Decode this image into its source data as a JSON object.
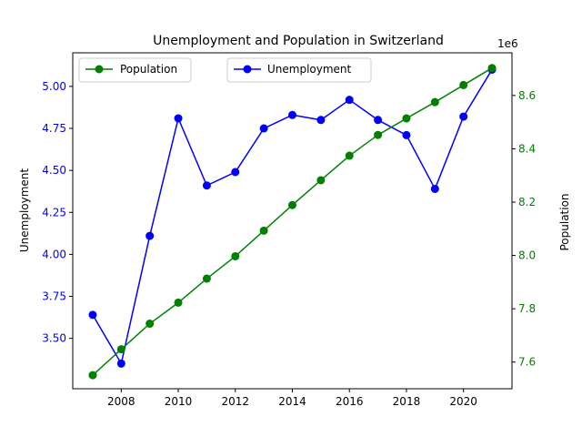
{
  "chart_data": {
    "type": "line",
    "title": "Unemployment and Population in Switzerland",
    "xlabel": "",
    "x": [
      2007,
      2008,
      2009,
      2010,
      2011,
      2012,
      2013,
      2014,
      2015,
      2016,
      2017,
      2018,
      2019,
      2020,
      2021
    ],
    "xlim": [
      2006.3,
      2021.7
    ],
    "x_ticks": [
      2008,
      2010,
      2012,
      2014,
      2016,
      2018,
      2020
    ],
    "grid": false,
    "series": [
      {
        "name": "Unemployment",
        "axis": "left",
        "color": "#0000ff",
        "marker": "circle",
        "values": [
          3.64,
          3.35,
          4.11,
          4.81,
          4.41,
          4.49,
          4.75,
          4.83,
          4.8,
          4.92,
          4.8,
          4.71,
          4.39,
          4.82,
          5.1
        ]
      },
      {
        "name": "Population",
        "axis": "right",
        "color": "#008000",
        "marker": "circle",
        "values": [
          7551000,
          7648000,
          7744000,
          7823000,
          7913000,
          7997000,
          8093000,
          8189000,
          8282000,
          8374000,
          8452000,
          8514000,
          8575000,
          8639000,
          8703000
        ]
      }
    ],
    "y_left": {
      "label": "Unemployment",
      "color": "#0000ff",
      "ylim": [
        3.2,
        5.2
      ],
      "ticks": [
        3.5,
        3.75,
        4.0,
        4.25,
        4.5,
        4.75,
        5.0
      ],
      "tick_labels": [
        "3.50",
        "3.75",
        "4.00",
        "4.25",
        "4.50",
        "4.75",
        "5.00"
      ]
    },
    "y_right": {
      "label": "Population",
      "color": "#008000",
      "ylim": [
        7500000,
        8760000
      ],
      "ticks": [
        7600000,
        7800000,
        8000000,
        8200000,
        8400000,
        8600000
      ],
      "tick_labels": [
        "7.6",
        "7.8",
        "8.0",
        "8.2",
        "8.4",
        "8.6"
      ],
      "offset_text": "1e6"
    },
    "legends": [
      {
        "location": "upper-left",
        "entries": [
          "Population"
        ]
      },
      {
        "location": "upper-center",
        "entries": [
          "Unemployment"
        ]
      }
    ]
  }
}
